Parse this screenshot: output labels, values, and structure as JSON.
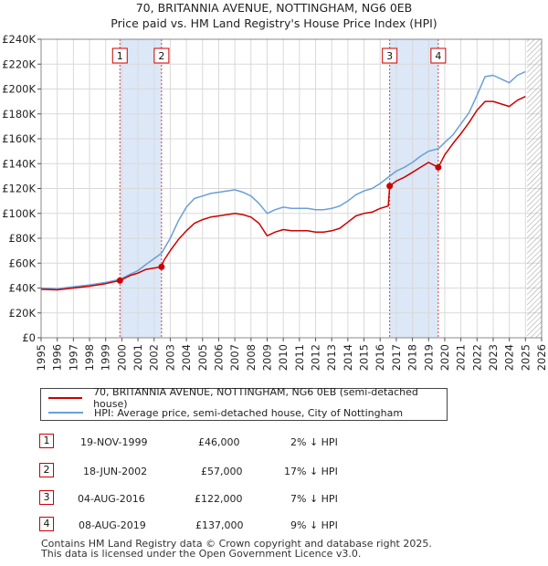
{
  "title": {
    "line1": "70, BRITANNIA AVENUE, NOTTINGHAM, NG6 0EB",
    "line2": "Price paid vs. HM Land Registry's House Price Index (HPI)"
  },
  "colors": {
    "price": "#cc0000",
    "hpi": "#6a9fd8",
    "shade": "#dce8f7",
    "grid": "#d9d9d9",
    "marker": "#cc0000"
  },
  "chart_data": {
    "type": "line",
    "title": "Price paid vs. HM Land Registry's House Price Index (HPI)",
    "xlabel": "",
    "ylabel": "",
    "xlim": [
      1995,
      2026
    ],
    "ylim": [
      0,
      240000
    ],
    "x_ticks": [
      1995,
      1996,
      1997,
      1998,
      1999,
      2000,
      2001,
      2002,
      2003,
      2004,
      2005,
      2006,
      2007,
      2008,
      2009,
      2010,
      2011,
      2012,
      2013,
      2014,
      2015,
      2016,
      2017,
      2018,
      2019,
      2020,
      2021,
      2022,
      2023,
      2024,
      2025,
      2026
    ],
    "y_ticks": [
      {
        "value": 0,
        "label": "£0"
      },
      {
        "value": 20000,
        "label": "£20K"
      },
      {
        "value": 40000,
        "label": "£40K"
      },
      {
        "value": 60000,
        "label": "£60K"
      },
      {
        "value": 80000,
        "label": "£80K"
      },
      {
        "value": 100000,
        "label": "£100K"
      },
      {
        "value": 120000,
        "label": "£120K"
      },
      {
        "value": 140000,
        "label": "£140K"
      },
      {
        "value": 160000,
        "label": "£160K"
      },
      {
        "value": 180000,
        "label": "£180K"
      },
      {
        "value": 200000,
        "label": "£200K"
      },
      {
        "value": 220000,
        "label": "£220K"
      },
      {
        "value": 240000,
        "label": "£240K"
      }
    ],
    "grid": true,
    "shaded_periods": [
      [
        1999.88,
        2002.46
      ],
      [
        2016.59,
        2019.6
      ]
    ],
    "future_hatch_from": 2025.1,
    "series": [
      {
        "name": "70, BRITANNIA AVENUE, NOTTINGHAM, NG6 0EB (semi-detached house)",
        "points": [
          [
            1995.0,
            39000
          ],
          [
            1996.0,
            38500
          ],
          [
            1997.0,
            40000
          ],
          [
            1998.0,
            41500
          ],
          [
            1999.0,
            43500
          ],
          [
            1999.88,
            46000
          ],
          [
            2000.5,
            50000
          ],
          [
            2001.0,
            52000
          ],
          [
            2001.5,
            55000
          ],
          [
            2002.46,
            57000
          ],
          [
            2002.6,
            62000
          ],
          [
            2003.0,
            70000
          ],
          [
            2003.5,
            79000
          ],
          [
            2004.0,
            86000
          ],
          [
            2004.5,
            92000
          ],
          [
            2005.0,
            95000
          ],
          [
            2005.5,
            97000
          ],
          [
            2006.0,
            98000
          ],
          [
            2006.5,
            99000
          ],
          [
            2007.0,
            100000
          ],
          [
            2007.5,
            99000
          ],
          [
            2008.0,
            97000
          ],
          [
            2008.5,
            92000
          ],
          [
            2009.0,
            82000
          ],
          [
            2009.5,
            85000
          ],
          [
            2010.0,
            87000
          ],
          [
            2010.5,
            86000
          ],
          [
            2011.0,
            86000
          ],
          [
            2011.5,
            86000
          ],
          [
            2012.0,
            85000
          ],
          [
            2012.5,
            85000
          ],
          [
            2013.0,
            86000
          ],
          [
            2013.5,
            88000
          ],
          [
            2014.0,
            93000
          ],
          [
            2014.5,
            98000
          ],
          [
            2015.0,
            100000
          ],
          [
            2015.5,
            101000
          ],
          [
            2016.0,
            104000
          ],
          [
            2016.5,
            106000
          ],
          [
            2016.59,
            122000
          ],
          [
            2017.0,
            126000
          ],
          [
            2017.5,
            129000
          ],
          [
            2018.0,
            133000
          ],
          [
            2018.5,
            137000
          ],
          [
            2019.0,
            141000
          ],
          [
            2019.6,
            137000
          ],
          [
            2020.0,
            147000
          ],
          [
            2020.5,
            156000
          ],
          [
            2021.0,
            164000
          ],
          [
            2021.5,
            173000
          ],
          [
            2022.0,
            183000
          ],
          [
            2022.5,
            190000
          ],
          [
            2023.0,
            190000
          ],
          [
            2023.5,
            188000
          ],
          [
            2024.0,
            186000
          ],
          [
            2024.5,
            191000
          ],
          [
            2025.0,
            194000
          ]
        ]
      },
      {
        "name": "HPI: Average price, semi-detached house, City of Nottingham",
        "points": [
          [
            1995.0,
            40000
          ],
          [
            1996.0,
            39500
          ],
          [
            1997.0,
            41000
          ],
          [
            1998.0,
            42500
          ],
          [
            1999.0,
            44500
          ],
          [
            1999.88,
            47000
          ],
          [
            2000.5,
            51000
          ],
          [
            2001.0,
            54000
          ],
          [
            2001.5,
            59000
          ],
          [
            2002.46,
            68000
          ],
          [
            2003.0,
            80000
          ],
          [
            2003.5,
            94000
          ],
          [
            2004.0,
            105000
          ],
          [
            2004.5,
            112000
          ],
          [
            2005.0,
            114000
          ],
          [
            2005.5,
            116000
          ],
          [
            2006.0,
            117000
          ],
          [
            2006.5,
            118000
          ],
          [
            2007.0,
            119000
          ],
          [
            2007.5,
            117000
          ],
          [
            2008.0,
            114000
          ],
          [
            2008.5,
            108000
          ],
          [
            2009.0,
            100000
          ],
          [
            2009.5,
            103000
          ],
          [
            2010.0,
            105000
          ],
          [
            2010.5,
            104000
          ],
          [
            2011.0,
            104000
          ],
          [
            2011.5,
            104000
          ],
          [
            2012.0,
            103000
          ],
          [
            2012.5,
            103000
          ],
          [
            2013.0,
            104000
          ],
          [
            2013.5,
            106000
          ],
          [
            2014.0,
            110000
          ],
          [
            2014.5,
            115000
          ],
          [
            2015.0,
            118000
          ],
          [
            2015.5,
            120000
          ],
          [
            2016.0,
            124000
          ],
          [
            2016.59,
            130000
          ],
          [
            2017.0,
            134000
          ],
          [
            2017.5,
            137000
          ],
          [
            2018.0,
            141000
          ],
          [
            2018.5,
            146000
          ],
          [
            2019.0,
            150000
          ],
          [
            2019.6,
            152000
          ],
          [
            2020.0,
            157000
          ],
          [
            2020.5,
            163000
          ],
          [
            2021.0,
            172000
          ],
          [
            2021.5,
            181000
          ],
          [
            2022.0,
            195000
          ],
          [
            2022.5,
            210000
          ],
          [
            2023.0,
            211000
          ],
          [
            2023.5,
            208000
          ],
          [
            2024.0,
            205000
          ],
          [
            2024.5,
            211000
          ],
          [
            2025.0,
            214000
          ]
        ]
      }
    ],
    "sales": [
      {
        "id": "1",
        "x": 1999.88,
        "price": 46000
      },
      {
        "id": "2",
        "x": 2002.46,
        "price": 57000
      },
      {
        "id": "3",
        "x": 2016.59,
        "price": 122000
      },
      {
        "id": "4",
        "x": 2019.6,
        "price": 137000
      }
    ]
  },
  "legend": {
    "price_label": "70, BRITANNIA AVENUE, NOTTINGHAM, NG6 0EB (semi-detached house)",
    "hpi_label": "HPI: Average price, semi-detached house, City of Nottingham"
  },
  "transactions": [
    {
      "id": "1",
      "date": "19-NOV-1999",
      "price": "£46,000",
      "delta": "2% ↓ HPI"
    },
    {
      "id": "2",
      "date": "18-JUN-2002",
      "price": "£57,000",
      "delta": "17% ↓ HPI"
    },
    {
      "id": "3",
      "date": "04-AUG-2016",
      "price": "£122,000",
      "delta": "7% ↓ HPI"
    },
    {
      "id": "4",
      "date": "08-AUG-2019",
      "price": "£137,000",
      "delta": "9% ↓ HPI"
    }
  ],
  "footer": {
    "line1": "Contains HM Land Registry data © Crown copyright and database right 2025.",
    "line2": "This data is licensed under the Open Government Licence v3.0."
  }
}
